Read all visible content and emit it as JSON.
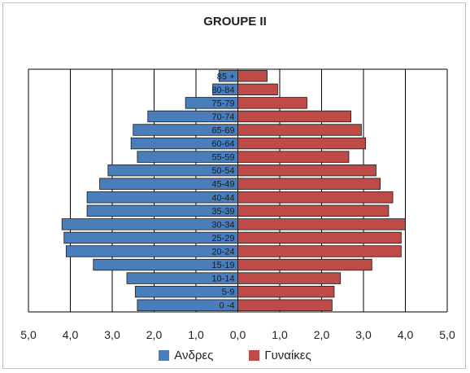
{
  "chart_data": {
    "type": "bar",
    "orientation": "horizontal-population-pyramid",
    "title": "GROUPE  II",
    "categories": [
      "0 -4",
      "5-9",
      "10-14",
      "15-19",
      "20-24",
      "25-29",
      "30-34",
      "35-39",
      "40-44",
      "45-49",
      "50-54",
      "55-59",
      "60-64",
      "65-69",
      "70-74",
      "75-79",
      "80-84",
      "85 +"
    ],
    "series": [
      {
        "name": "Ανδρες",
        "color": "#4a7ebb",
        "values": [
          2.4,
          2.45,
          2.65,
          3.45,
          4.1,
          4.15,
          4.2,
          3.6,
          3.6,
          3.3,
          3.1,
          2.4,
          2.55,
          2.5,
          2.15,
          1.25,
          0.6,
          0.45
        ]
      },
      {
        "name": "Γυναίκες",
        "color": "#be4b48",
        "values": [
          2.25,
          2.3,
          2.45,
          3.2,
          3.9,
          3.9,
          4.0,
          3.6,
          3.7,
          3.4,
          3.3,
          2.65,
          3.05,
          2.95,
          2.7,
          1.65,
          0.95,
          0.7
        ]
      }
    ],
    "x_ticks": [
      "5,0",
      "4,0",
      "3,0",
      "2,0",
      "1,0",
      "0,0",
      "1,0",
      "2,0",
      "3,0",
      "4,0",
      "5,0"
    ],
    "xlim": [
      -5,
      5
    ],
    "grid": "vertical",
    "legend": "bottom"
  }
}
